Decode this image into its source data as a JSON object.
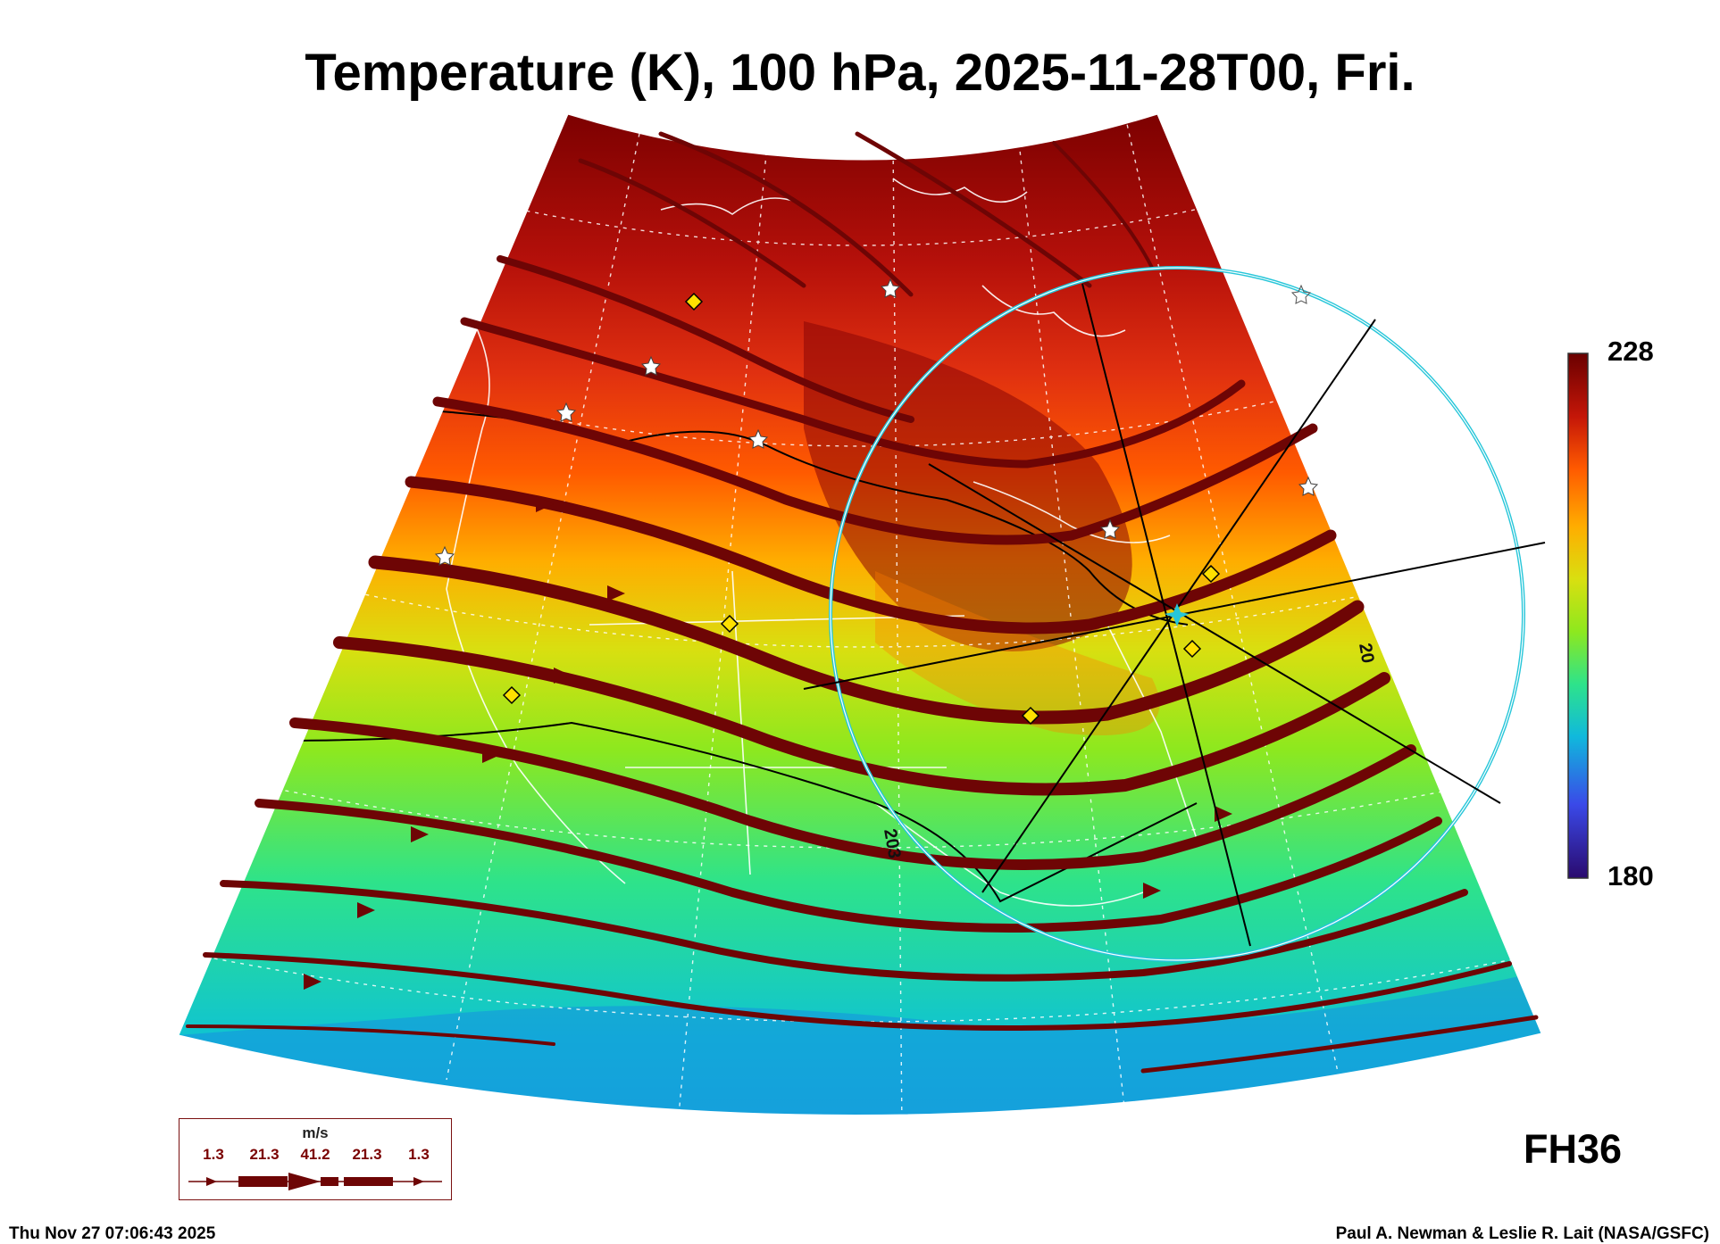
{
  "title": "Temperature (K), 100 hPa, 2025-11-28T00, Fri.",
  "colorbar": {
    "max_label": "228",
    "min_label": "180",
    "range": [
      180,
      228
    ],
    "colors": [
      "#2a0a6e",
      "#3a49e8",
      "#10b9dc",
      "#2ee38a",
      "#8ee81e",
      "#d9df10",
      "#ffad00",
      "#ff5a00",
      "#d61e0a",
      "#7a0000"
    ]
  },
  "contour_labels": [
    "203",
    "20"
  ],
  "legend": {
    "unit": "m/s",
    "values": [
      "1.3",
      "21.3",
      "41.2",
      "21.3",
      "1.3"
    ]
  },
  "forecast_hour": "FH36",
  "footer": {
    "timestamp": "Thu Nov 27 07:06:43 2025",
    "credit": "Paul A. Newman & Leslie R. Lait (NASA/GSFC)"
  },
  "colors": {
    "wind_arrow": "#6e0505",
    "circle": "#27c6d9",
    "station_yellow": "#ffe000",
    "coastline": "#ffffff"
  }
}
